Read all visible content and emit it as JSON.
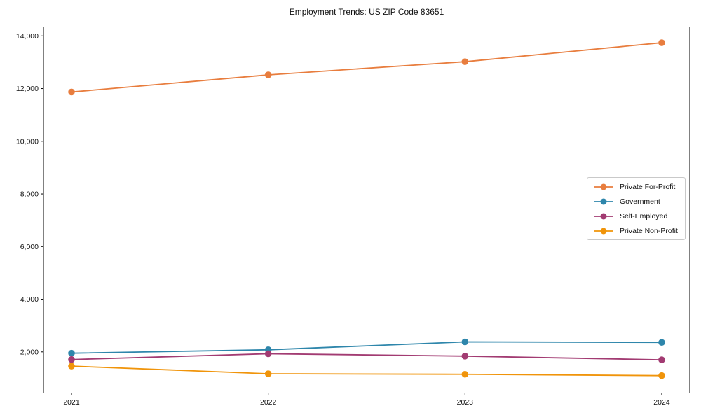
{
  "figure": {
    "background": "#ffffff",
    "axis_color": "#000000",
    "text_color": "#111111",
    "legend_border_color": "#c9c9c9"
  },
  "chart_data": {
    "type": "line",
    "title": "Employment Trends: US ZIP Code 83651",
    "categories": [
      "2021",
      "2022",
      "2023",
      "2024"
    ],
    "series": [
      {
        "name": "Private For-Profit",
        "color": "#E87D3E",
        "values": [
          11870,
          12520,
          13020,
          13740
        ]
      },
      {
        "name": "Government",
        "color": "#2E86AB",
        "values": [
          1950,
          2080,
          2380,
          2360
        ]
      },
      {
        "name": "Self-Employed",
        "color": "#A23B72",
        "values": [
          1710,
          1930,
          1840,
          1700
        ]
      },
      {
        "name": "Private Non-Profit",
        "color": "#F0940A",
        "values": [
          1460,
          1170,
          1150,
          1100
        ]
      }
    ],
    "xlabel": "",
    "ylabel": "",
    "ylim": [
      440,
      14340
    ],
    "yticks": [
      2000,
      4000,
      6000,
      8000,
      10000,
      12000,
      14000
    ],
    "ytick_labels": [
      "2,000",
      "4,000",
      "6,000",
      "8,000",
      "10,000",
      "12,000",
      "14,000"
    ],
    "grid": false,
    "marker": "circle",
    "legend_position": "center right"
  }
}
